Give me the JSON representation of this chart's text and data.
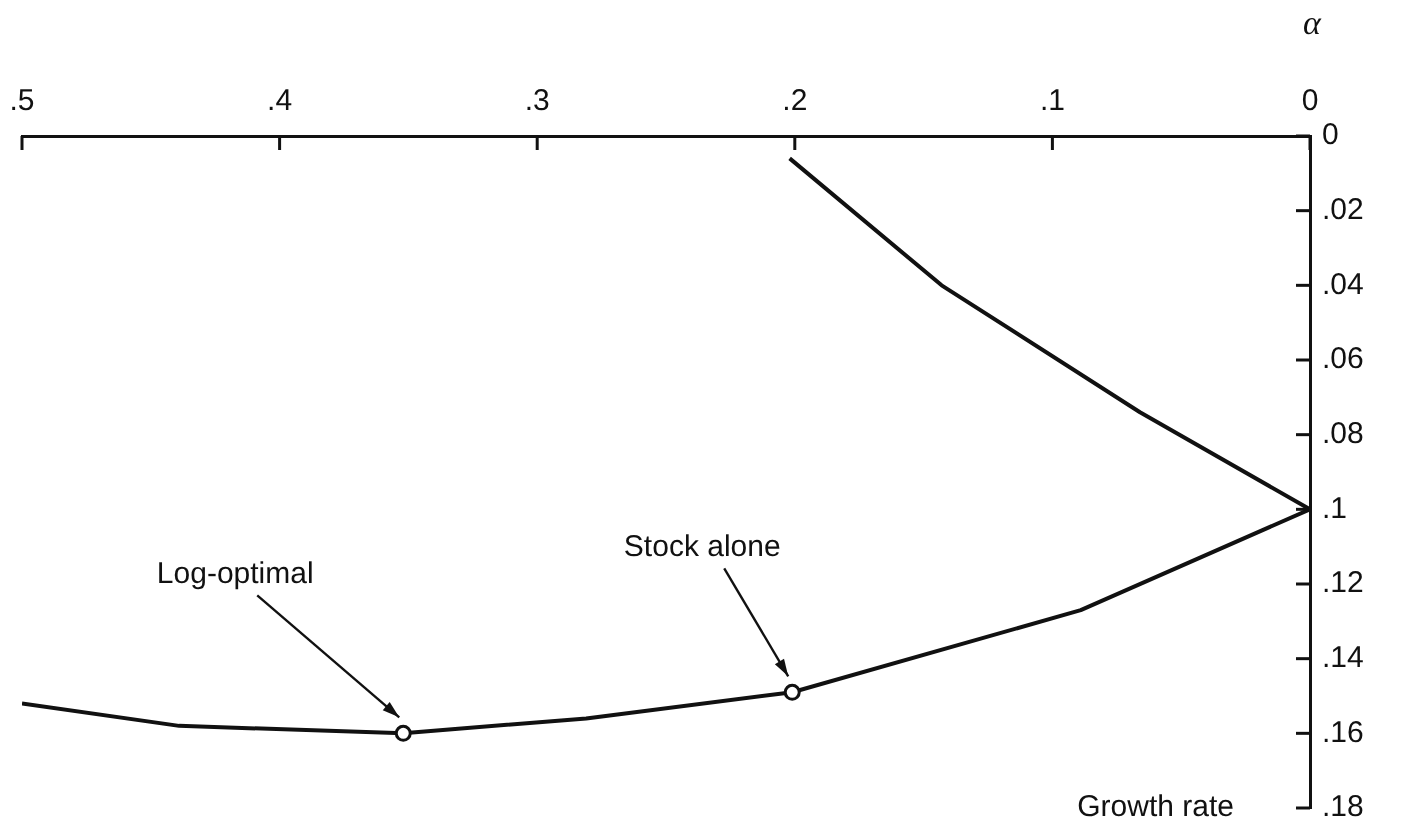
{
  "chart_data": {
    "type": "line",
    "xlabel": "α",
    "ylabel": "Growth rate",
    "series": [
      {
        "color": "#111111",
        "x": [
          0.202,
          0.143,
          0.066,
          0.0,
          0.089,
          0.201,
          0.281,
          0.352,
          0.439,
          0.5
        ],
        "values": [
          0.006,
          0.04,
          0.074,
          0.1,
          0.127,
          0.149,
          0.156,
          0.16,
          0.158,
          0.152
        ]
      }
    ],
    "xlim": [
      0.5,
      0
    ],
    "xticks": [
      0,
      {
        "value": 0.1,
        "label": ".1"
      },
      {
        "value": 0.2,
        "label": ".2"
      },
      {
        "value": 0.3,
        "label": ".3"
      },
      {
        "value": 0.4,
        "label": ".4"
      },
      {
        "value": 0.5,
        "label": ".5"
      }
    ],
    "ylim": [
      0.18,
      0
    ],
    "yticks": [
      0,
      {
        "value": 0.02,
        "label": ".02"
      },
      {
        "value": 0.04,
        "label": ".04"
      },
      {
        "value": 0.06,
        "label": ".06"
      },
      {
        "value": 0.08,
        "label": ".08"
      },
      {
        "value": 0.1,
        "label": ".1"
      },
      {
        "value": 0.12,
        "label": ".12"
      },
      {
        "value": 0.14,
        "label": ".14"
      },
      {
        "value": 0.16,
        "label": ".16"
      },
      {
        "value": 0.18,
        "label": ".18"
      }
    ],
    "annotations": [
      {
        "text": "Stock alone",
        "x": 0.201,
        "y": 0.149
      },
      {
        "text": "Log-optimal",
        "x": 0.352,
        "y": 0.16
      }
    ],
    "grid": false,
    "legend": false,
    "marker": "none",
    "line_style": "solid"
  }
}
